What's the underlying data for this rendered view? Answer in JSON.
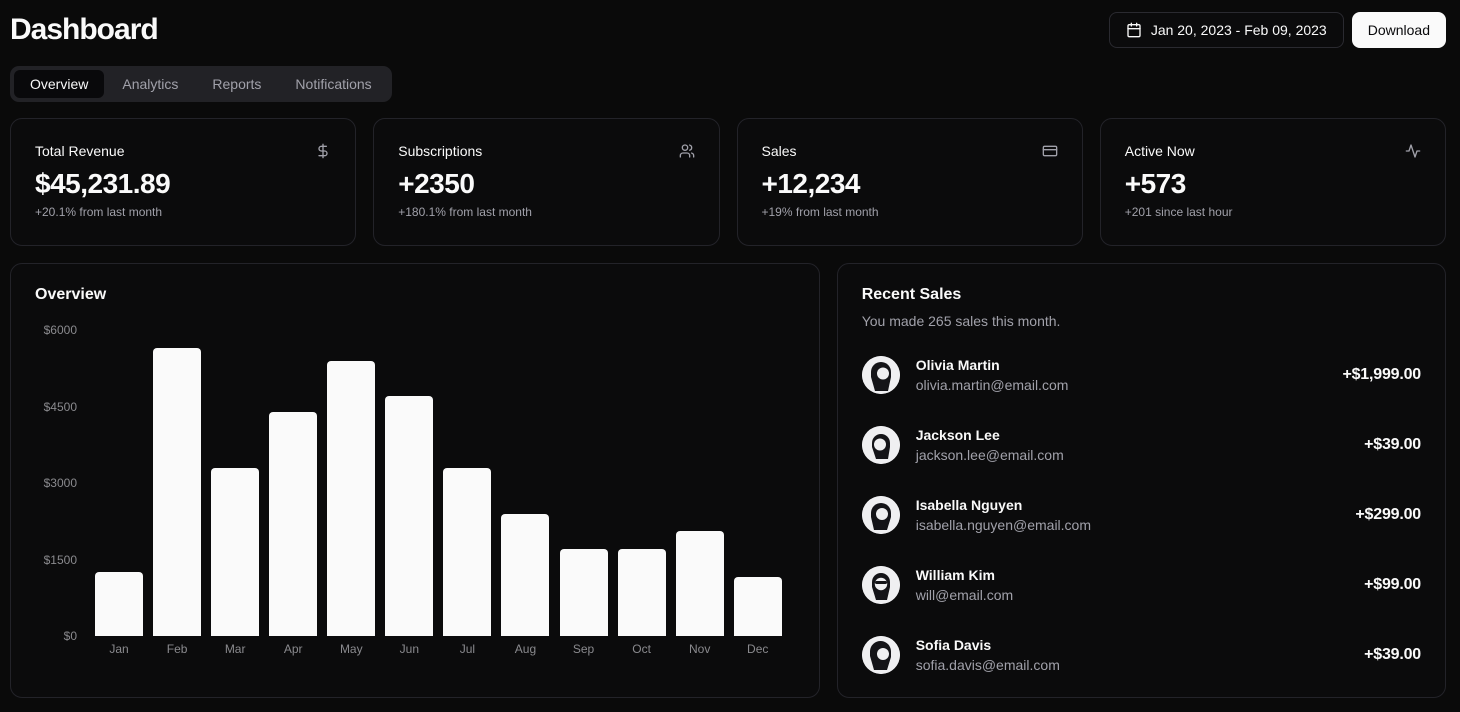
{
  "header": {
    "title": "Dashboard",
    "date_range": "Jan 20, 2023 - Feb 09, 2023",
    "download_label": "Download"
  },
  "tabs": [
    {
      "label": "Overview",
      "active": true
    },
    {
      "label": "Analytics",
      "active": false
    },
    {
      "label": "Reports",
      "active": false
    },
    {
      "label": "Notifications",
      "active": false
    }
  ],
  "stats": [
    {
      "label": "Total Revenue",
      "icon": "dollar-sign-icon",
      "value": "$45,231.89",
      "caption": "+20.1% from last month"
    },
    {
      "label": "Subscriptions",
      "icon": "users-icon",
      "value": "+2350",
      "caption": "+180.1% from last month"
    },
    {
      "label": "Sales",
      "icon": "credit-card-icon",
      "value": "+12,234",
      "caption": "+19% from last month"
    },
    {
      "label": "Active Now",
      "icon": "activity-icon",
      "value": "+573",
      "caption": "+201 since last hour"
    }
  ],
  "chart_data": {
    "type": "bar",
    "title": "Overview",
    "categories": [
      "Jan",
      "Feb",
      "Mar",
      "Apr",
      "May",
      "Jun",
      "Jul",
      "Aug",
      "Sep",
      "Oct",
      "Nov",
      "Dec"
    ],
    "values": [
      1250,
      5650,
      3300,
      4400,
      5400,
      4700,
      3300,
      2400,
      1700,
      1700,
      2050,
      1150
    ],
    "xlabel": "",
    "ylabel": "",
    "ylim": [
      0,
      6000
    ],
    "y_ticks": [
      {
        "label": "$0",
        "value": 0
      },
      {
        "label": "$1500",
        "value": 1500
      },
      {
        "label": "$3000",
        "value": 3000
      },
      {
        "label": "$4500",
        "value": 4500
      },
      {
        "label": "$6000",
        "value": 6000
      }
    ],
    "grid": false,
    "legend": false,
    "bar_color": "#fafafa"
  },
  "recent_sales": {
    "title": "Recent Sales",
    "subtitle": "You made 265 sales this month.",
    "items": [
      {
        "name": "Olivia Martin",
        "email": "olivia.martin@email.com",
        "amount": "+$1,999.00"
      },
      {
        "name": "Jackson Lee",
        "email": "jackson.lee@email.com",
        "amount": "+$39.00"
      },
      {
        "name": "Isabella Nguyen",
        "email": "isabella.nguyen@email.com",
        "amount": "+$299.00"
      },
      {
        "name": "William Kim",
        "email": "will@email.com",
        "amount": "+$99.00"
      },
      {
        "name": "Sofia Davis",
        "email": "sofia.davis@email.com",
        "amount": "+$39.00"
      }
    ]
  },
  "colors": {
    "background": "#0a0a0a",
    "card": "#0b0b0c",
    "border": "#232329",
    "foreground": "#fafafa",
    "muted": "#a1a1aa",
    "axis_text": "#8a8a8e",
    "bar": "#fafafa",
    "tabbar": "#222226",
    "active_tab": "#09090b"
  }
}
